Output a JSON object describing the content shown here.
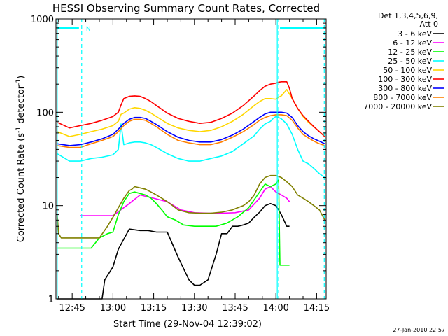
{
  "chart_data": {
    "type": "line",
    "title": "HESSI Observing Summary Count Rates, Corrected",
    "xlabel": "Start Time (29-Nov-04 12:39:02)",
    "ylabel_main": "Corrected Count Rate (s",
    "ylabel_sup1": "-1",
    "ylabel_mid": " detector",
    "ylabel_sup2": "-1",
    "ylabel_end": ")",
    "y_scale": "log",
    "ylim": [
      1,
      1000
    ],
    "xlim_minutes": [
      39.03,
      138.5
    ],
    "y_tick_labels": [
      {
        "value": 1,
        "text": "1"
      },
      {
        "value": 10,
        "text": "10"
      },
      {
        "value": 100,
        "text": "100"
      },
      {
        "value": 1000,
        "text": "1000"
      }
    ],
    "x_tick_labels": [
      {
        "minutes": 45,
        "text": "12:45"
      },
      {
        "minutes": 60,
        "text": "13:00"
      },
      {
        "minutes": 75,
        "text": "13:15"
      },
      {
        "minutes": 90,
        "text": "13:30"
      },
      {
        "minutes": 105,
        "text": "13:45"
      },
      {
        "minutes": 120,
        "text": "14:00"
      },
      {
        "minutes": 135,
        "text": "14:15"
      }
    ],
    "legend_header": [
      "Det 1,3,4,5,6,9,",
      "Att 0"
    ],
    "legend_placement": "right",
    "series": [
      {
        "name": "3 - 6 keV",
        "color": "#000000",
        "x": [
          39.5,
          48,
          48.5,
          56,
          57,
          60,
          62,
          66,
          70,
          73,
          76,
          80,
          84,
          88,
          90,
          92,
          95,
          98,
          100,
          102,
          104,
          106,
          108,
          110,
          112,
          114,
          116,
          118,
          120,
          122,
          124,
          125
        ],
        "y": [
          1,
          1,
          1,
          1,
          1.6,
          2.2,
          3.4,
          5.6,
          5.4,
          5.4,
          5.2,
          5.2,
          2.8,
          1.6,
          1.4,
          1.4,
          1.6,
          3,
          5,
          5,
          6,
          6,
          6.2,
          6.5,
          7.5,
          8.5,
          10,
          10.5,
          10,
          8,
          6,
          6
        ]
      },
      {
        "name": "6 - 12 keV",
        "color": "#ff00ff",
        "x": [
          48,
          49,
          55,
          60,
          66,
          70,
          75,
          80,
          85,
          90,
          95,
          100,
          105,
          110,
          114,
          116,
          118,
          120,
          122,
          124,
          125
        ],
        "y": [
          7.8,
          7.8,
          7.8,
          7.8,
          10.5,
          13,
          12,
          11,
          9,
          8.4,
          8.3,
          8.3,
          8.4,
          9,
          12,
          15,
          16,
          14,
          13,
          12,
          11
        ]
      },
      {
        "name": "12 - 25 keV",
        "color": "#00ff00",
        "x": [
          39.5,
          44,
          48,
          52,
          55,
          58,
          60,
          62,
          64,
          66,
          68,
          70,
          72,
          74,
          76,
          78,
          80,
          83,
          86,
          90,
          94,
          98,
          102,
          106,
          110,
          114,
          116,
          118,
          120,
          121,
          121.5,
          125
        ],
        "y": [
          3.5,
          3.5,
          3.5,
          3.5,
          4.5,
          5,
          5.2,
          8,
          11,
          13.5,
          14,
          13.5,
          13,
          12,
          10.5,
          9,
          7.6,
          7,
          6.2,
          6,
          6,
          6,
          6.5,
          7.6,
          9.5,
          14,
          17,
          16,
          17,
          19,
          2.3,
          2.3
        ]
      },
      {
        "name": "25 - 50 keV",
        "color": "#00ffff",
        "x": [
          39.5,
          44,
          48,
          52,
          56,
          60,
          62,
          63,
          64,
          66,
          68,
          70,
          72,
          74,
          76,
          80,
          84,
          88,
          92,
          96,
          100,
          104,
          108,
          112,
          114,
          116,
          118,
          119,
          120,
          121,
          122,
          124,
          126,
          128,
          130,
          132,
          134,
          136,
          138
        ],
        "y": [
          36,
          30,
          30,
          32,
          33,
          35,
          40,
          75,
          45,
          47,
          48,
          48,
          47,
          45,
          42,
          36,
          32,
          30,
          30,
          32,
          34,
          38,
          46,
          56,
          66,
          75,
          80,
          86,
          90,
          88,
          85,
          75,
          58,
          40,
          30,
          28,
          25,
          22,
          20
        ]
      },
      {
        "name": "50 - 100 keV",
        "color": "#ffd700",
        "x": [
          39.5,
          44,
          48,
          52,
          56,
          60,
          62,
          63,
          64,
          66,
          68,
          70,
          72,
          74,
          76,
          80,
          84,
          88,
          92,
          96,
          100,
          104,
          108,
          112,
          114,
          116,
          118,
          120,
          121,
          122,
          124,
          126,
          128,
          130,
          132,
          134,
          136,
          138
        ],
        "y": [
          62,
          55,
          58,
          62,
          66,
          72,
          80,
          95,
          98,
          108,
          112,
          110,
          105,
          98,
          90,
          76,
          68,
          64,
          62,
          64,
          70,
          80,
          95,
          118,
          130,
          140,
          140,
          138,
          145,
          150,
          175,
          140,
          110,
          90,
          78,
          70,
          62,
          55
        ]
      },
      {
        "name": "100 - 300 keV",
        "color": "#ff0000",
        "x": [
          39.5,
          44,
          48,
          52,
          56,
          60,
          62,
          63,
          64,
          66,
          68,
          70,
          72,
          74,
          76,
          80,
          84,
          88,
          92,
          96,
          100,
          104,
          108,
          112,
          114,
          116,
          118,
          120,
          121,
          122,
          124,
          125,
          126,
          128,
          130,
          132,
          134,
          136,
          138
        ],
        "y": [
          78,
          68,
          72,
          76,
          82,
          90,
          100,
          120,
          140,
          148,
          150,
          148,
          140,
          130,
          118,
          98,
          86,
          80,
          76,
          78,
          86,
          98,
          118,
          150,
          170,
          190,
          200,
          205,
          210,
          212,
          212,
          180,
          140,
          110,
          92,
          80,
          70,
          62,
          55
        ]
      },
      {
        "name": "300 - 800 keV",
        "color": "#0000ff",
        "x": [
          39.5,
          44,
          48,
          52,
          56,
          60,
          62,
          64,
          66,
          68,
          70,
          72,
          74,
          76,
          80,
          84,
          88,
          92,
          96,
          100,
          104,
          108,
          112,
          114,
          116,
          118,
          120,
          122,
          124,
          126,
          128,
          130,
          132,
          134,
          136,
          138
        ],
        "y": [
          46,
          44,
          45,
          48,
          52,
          58,
          66,
          76,
          84,
          88,
          88,
          86,
          80,
          74,
          62,
          54,
          50,
          48,
          48,
          51,
          57,
          66,
          80,
          88,
          96,
          100,
          100,
          100,
          98,
          88,
          72,
          62,
          56,
          52,
          49,
          46
        ]
      },
      {
        "name": "800 - 7000 keV",
        "color": "#ff8000",
        "x": [
          39.5,
          44,
          48,
          52,
          56,
          60,
          62,
          64,
          66,
          68,
          70,
          72,
          74,
          76,
          80,
          84,
          88,
          92,
          96,
          100,
          104,
          108,
          112,
          114,
          116,
          118,
          120,
          122,
          124,
          126,
          128,
          130,
          132,
          134,
          136,
          138
        ],
        "y": [
          44,
          42,
          42,
          46,
          50,
          55,
          62,
          72,
          80,
          84,
          84,
          82,
          76,
          70,
          58,
          50,
          47,
          45,
          45,
          48,
          54,
          62,
          74,
          82,
          88,
          92,
          94,
          94,
          92,
          82,
          68,
          58,
          53,
          49,
          46,
          44
        ]
      },
      {
        "name": "7000 - 20000 keV",
        "color": "#808000",
        "x": [
          39.5,
          40,
          41,
          42,
          43,
          44,
          48,
          52,
          55,
          58,
          60,
          62,
          64,
          66,
          67,
          68,
          70,
          72,
          74,
          76,
          78,
          80,
          82,
          84,
          88,
          92,
          96,
          100,
          104,
          106,
          108,
          110,
          112,
          114,
          116,
          118,
          120,
          122,
          124,
          126,
          128,
          130,
          132,
          134,
          136,
          138
        ],
        "y": [
          8,
          5,
          4.5,
          4.5,
          4.5,
          4.5,
          4.5,
          4.5,
          4.5,
          6,
          7.5,
          9.5,
          12,
          14.5,
          15,
          16,
          15.5,
          15,
          14,
          13,
          12,
          11,
          10,
          9,
          8.4,
          8.3,
          8.3,
          8.5,
          9,
          9.5,
          10,
          11,
          13,
          17,
          20,
          21,
          21,
          20,
          18,
          16,
          13,
          12,
          11,
          10,
          9,
          7
        ]
      }
    ],
    "attenuator_markers_minutes": [
      48.5,
      121,
      137.8
    ],
    "saa_line_minutes": [
      39.5,
      120.5
    ],
    "bar_segments_minutes": [
      [
        39.5,
        47.5
      ],
      [
        121.5,
        137.5
      ]
    ],
    "bar_level": 800,
    "bar_letter": "N",
    "colors": {
      "axis": "#000000",
      "marker": "#00ffff"
    }
  },
  "footer": {
    "timestamp": "27-Jan-2010 22:57"
  }
}
